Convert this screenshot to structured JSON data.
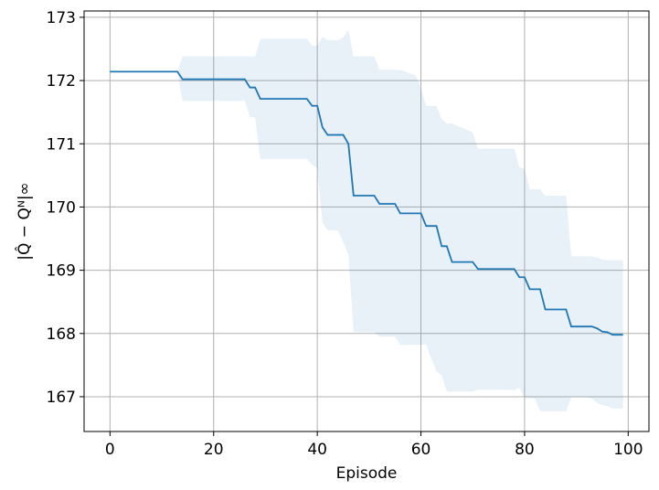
{
  "chart_data": {
    "type": "line",
    "title": "",
    "xlabel": "Episode",
    "ylabel": "|Q̂ − Qᴺ|∞",
    "xlim": [
      -5,
      104
    ],
    "ylim": [
      166.45,
      173.1
    ],
    "xticks": [
      0,
      20,
      40,
      60,
      80,
      100
    ],
    "yticks": [
      167,
      168,
      169,
      170,
      171,
      172,
      173
    ],
    "grid": true,
    "colors": {
      "line": "#1f77b4",
      "band": "#1f77b4",
      "grid": "#b0b0b0"
    },
    "series": [
      {
        "x": [
          0,
          13,
          14,
          26,
          27,
          28,
          29,
          38,
          39,
          40,
          41,
          42,
          44,
          45,
          46,
          47,
          51,
          52,
          54,
          55,
          56,
          59,
          60,
          61,
          62,
          63,
          64,
          65,
          66,
          70,
          71,
          77,
          78,
          79,
          80,
          81,
          82,
          83,
          84,
          88,
          89,
          92,
          93,
          94,
          95,
          96,
          97,
          98,
          99
        ],
        "y": [
          172.14,
          172.14,
          172.02,
          172.02,
          171.89,
          171.89,
          171.71,
          171.71,
          171.6,
          171.6,
          171.26,
          171.14,
          171.14,
          171.14,
          171.0,
          170.18,
          170.18,
          170.05,
          170.05,
          170.05,
          169.9,
          169.9,
          169.9,
          169.7,
          169.7,
          169.7,
          169.38,
          169.38,
          169.13,
          169.13,
          169.02,
          169.02,
          169.02,
          168.89,
          168.89,
          168.7,
          168.7,
          168.7,
          168.38,
          168.38,
          168.11,
          168.11,
          168.11,
          168.08,
          168.03,
          168.02,
          167.98,
          167.98,
          167.98
        ],
        "upper": [
          172.14,
          172.14,
          172.38,
          172.38,
          172.38,
          172.38,
          172.66,
          172.66,
          172.55,
          172.55,
          172.69,
          172.64,
          172.64,
          172.68,
          172.8,
          172.38,
          172.38,
          172.17,
          172.17,
          172.17,
          172.17,
          172.08,
          171.88,
          171.6,
          171.6,
          171.6,
          171.39,
          171.32,
          171.32,
          171.18,
          170.92,
          170.92,
          170.92,
          170.63,
          170.6,
          170.28,
          170.28,
          170.28,
          170.18,
          170.18,
          169.22,
          169.22,
          169.22,
          169.2,
          169.17,
          169.16,
          169.16,
          169.16,
          169.16
        ],
        "lower": [
          172.14,
          172.14,
          171.68,
          171.68,
          171.42,
          171.42,
          170.76,
          170.76,
          170.66,
          170.62,
          169.75,
          169.63,
          169.63,
          169.44,
          169.25,
          168.02,
          168.02,
          167.95,
          167.95,
          167.95,
          167.82,
          167.82,
          167.82,
          167.83,
          167.6,
          167.4,
          167.34,
          167.08,
          167.08,
          167.08,
          167.11,
          167.11,
          167.11,
          167.14,
          166.98,
          166.98,
          166.97,
          166.77,
          166.77,
          166.77,
          166.99,
          166.99,
          166.97,
          166.9,
          166.87,
          166.85,
          166.81,
          166.81,
          166.81
        ]
      }
    ]
  }
}
